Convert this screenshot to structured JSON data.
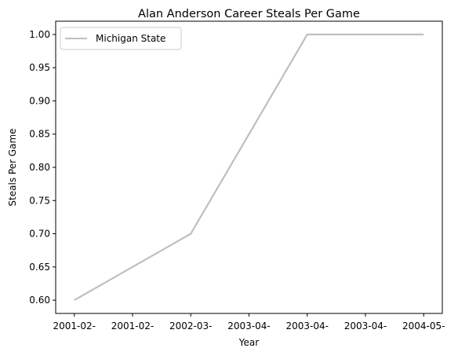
{
  "chart_data": {
    "type": "line",
    "title": "Alan Anderson  Career Steals Per Game",
    "xlabel": "Year",
    "ylabel": "Steals Per Game",
    "x_tick_labels": [
      "2001-02-",
      "2001-02-",
      "2002-03-",
      "2003-04-",
      "2003-04-",
      "2003-04-",
      "2004-05-"
    ],
    "x_tick_values": [
      2001,
      2001.5,
      2002,
      2002.5,
      2003,
      2003.5,
      2004
    ],
    "xlim": [
      2000.84,
      2004.16
    ],
    "ylim": [
      0.58,
      1.02
    ],
    "y_ticks": [
      0.6,
      0.65,
      0.7,
      0.75,
      0.8,
      0.85,
      0.9,
      0.95,
      1.0
    ],
    "y_tick_labels": [
      "0.60",
      "0.65",
      "0.70",
      "0.75",
      "0.80",
      "0.85",
      "0.90",
      "0.95",
      "1.00"
    ],
    "grid": false,
    "legend_position": "top-left",
    "series": [
      {
        "name": "Michigan State",
        "color": "#bfbfbf",
        "x": [
          2001,
          2002,
          2003,
          2004
        ],
        "y": [
          0.6,
          0.7,
          1.0,
          1.0
        ]
      }
    ]
  }
}
